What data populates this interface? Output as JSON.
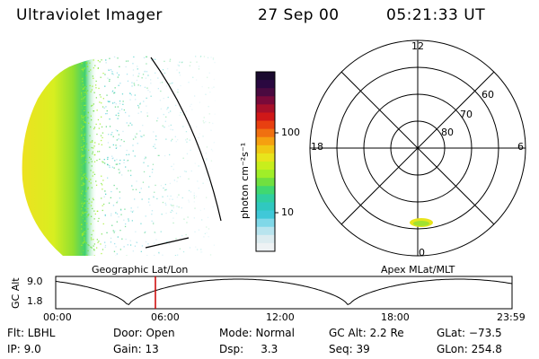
{
  "header": {
    "instrument": "Ultraviolet Imager",
    "date": "27 Sep 00",
    "time": "05:21:33 UT"
  },
  "colorbar": {
    "unit_label": "photon cm⁻²s⁻¹",
    "ticks": [
      "100",
      "10"
    ],
    "colors": [
      "#1a0a2e",
      "#2a0840",
      "#4a0a40",
      "#7a0a3a",
      "#a8102a",
      "#d01818",
      "#e84010",
      "#f07010",
      "#f5a010",
      "#f0c814",
      "#e8e41c",
      "#c8ee1c",
      "#a0ee28",
      "#70e040",
      "#40d870",
      "#30cfa0",
      "#30c8c0",
      "#40c8d8",
      "#80d8e8",
      "#b8e4ee",
      "#dcecf0",
      "#eef2f4"
    ]
  },
  "polar_plot": {
    "mlt_labels": {
      "top": "12",
      "left": "18",
      "right": "6",
      "bottom": "0"
    },
    "lat_labels": [
      "60",
      "70",
      "80"
    ]
  },
  "timeline": {
    "ylabel": "GC Alt",
    "y_ticks": [
      "9.0",
      "1.8"
    ],
    "left_label": "Geographic Lat/Lon",
    "right_label": "Apex MLat/MLT",
    "x_ticks": [
      "00:00",
      "06:00",
      "12:00",
      "18:00",
      "23:59"
    ],
    "current_time_marker": "05:21:33"
  },
  "footer": {
    "flt": "Flt: LBHL",
    "ip": "IP:  9.0",
    "door": "Door: Open",
    "gain": "Gain: 13",
    "mode": "Mode: Normal",
    "dsp": "Dsp:     3.3",
    "gcalt": "GC Alt: 2.2 Re",
    "seq": "Seq: 39",
    "glat": "GLat: −73.5",
    "glon": "GLon: 254.8"
  },
  "colors": {
    "background": "#ffffff",
    "marker": "#cc0000",
    "foreground": "#000000"
  }
}
